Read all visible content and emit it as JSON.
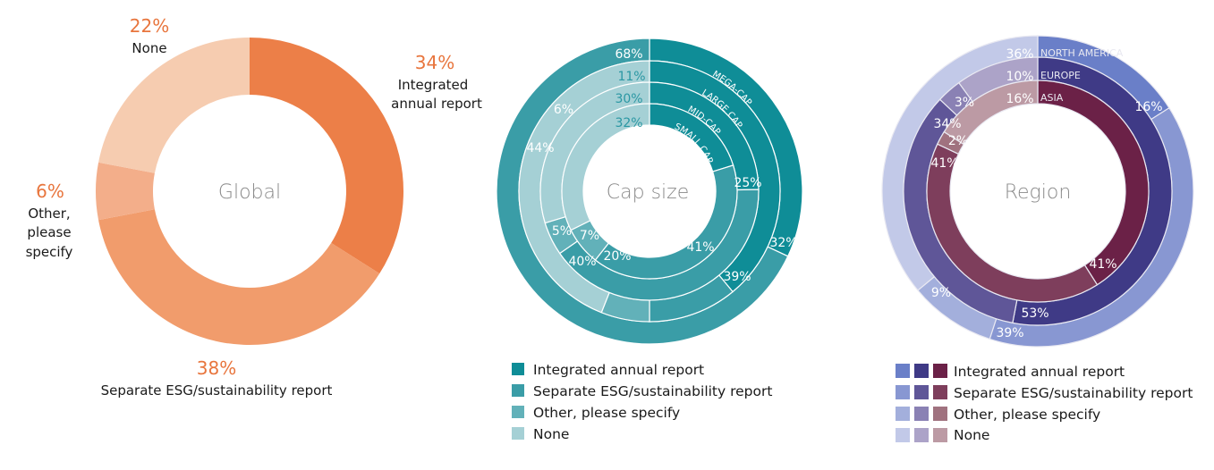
{
  "colors": {
    "global": [
      "#ec7f48",
      "#f19c6c",
      "#f3ae8a",
      "#f6ccb0"
    ],
    "cap": [
      "#0f8d97",
      "#3a9da7",
      "#62b1b9",
      "#a5d0d5"
    ],
    "north_america": [
      "#6a7fc8",
      "#8897d2",
      "#a3afdc",
      "#c2c9e8"
    ],
    "europe": [
      "#3f3a86",
      "#5f5698",
      "#8a81b4",
      "#aca3c8"
    ],
    "asia": [
      "#6b2147",
      "#7e3e5c",
      "#a0727f",
      "#bc9aa4"
    ]
  },
  "chart_data": [
    {
      "type": "donut",
      "center_label": "Global",
      "categories": [
        "Integrated annual report",
        "Separate ESG/sustainability report",
        "Other, please specify",
        "None"
      ],
      "values": [
        34,
        38,
        6,
        22
      ],
      "labels": [
        {
          "pct": "34%",
          "text": [
            "Integrated",
            "annual report"
          ]
        },
        {
          "pct": "38%",
          "text": [
            "Separate ESG/sustainability report"
          ]
        },
        {
          "pct": "6%",
          "text": [
            "Other,",
            "please",
            "specify"
          ]
        },
        {
          "pct": "22%",
          "text": [
            "None"
          ]
        }
      ]
    },
    {
      "type": "nested-donut",
      "center_label": "Cap size",
      "categories": [
        "Integrated annual report",
        "Separate ESG/sustainability report",
        "Other, please specify",
        "None"
      ],
      "series": [
        {
          "name": "MEGA-CAP",
          "values": [
            32,
            68,
            0,
            0
          ],
          "shown": [
            "32%",
            "68%"
          ]
        },
        {
          "name": "LARGE CAP",
          "values": [
            39,
            11,
            6,
            44
          ],
          "shown": [
            "39%",
            "11%",
            "6%",
            "44%"
          ]
        },
        {
          "name": "MID-CAP",
          "values": [
            25,
            41,
            5,
            30
          ],
          "shown": [
            "25%",
            "41%",
            "5%",
            "30%"
          ]
        },
        {
          "name": "SMALL CAP",
          "values": [
            20,
            40,
            7,
            32
          ],
          "shown": [
            "20%",
            "40%",
            "7%",
            "32%"
          ]
        }
      ]
    },
    {
      "type": "nested-donut",
      "center_label": "Region",
      "categories": [
        "Integrated annual report",
        "Separate ESG/sustainability report",
        "Other, please specify",
        "None"
      ],
      "series": [
        {
          "name": "NORTH AMERICA",
          "values": [
            16,
            39,
            9,
            36
          ],
          "shown": [
            "16%",
            "39%",
            "9%",
            "36%"
          ]
        },
        {
          "name": "EUROPE",
          "values": [
            53,
            34,
            3,
            10
          ],
          "shown": [
            "53%",
            "34%",
            "3%",
            "10%"
          ]
        },
        {
          "name": "ASIA",
          "values": [
            41,
            41,
            2,
            16
          ],
          "shown": [
            "41%",
            "41%",
            "2%",
            "16%"
          ]
        }
      ]
    }
  ],
  "legend": {
    "items": [
      "Integrated annual report",
      "Separate ESG/sustainability report",
      "Other, please specify",
      "None"
    ]
  }
}
